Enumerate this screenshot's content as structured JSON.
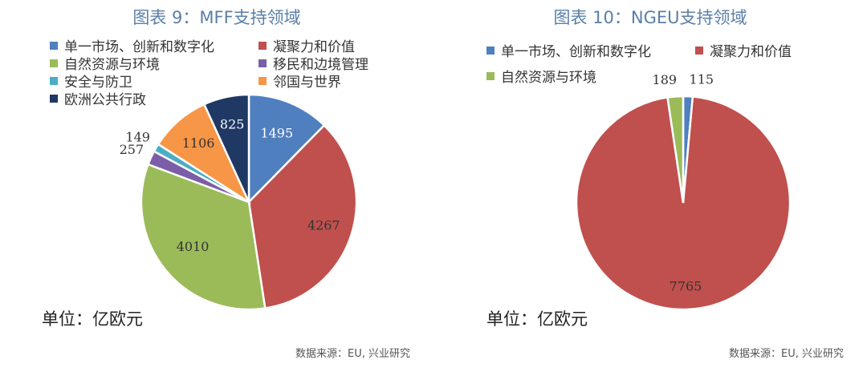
{
  "chart_data": [
    {
      "type": "pie",
      "title": "图表 9：MFF支持领域",
      "unit": "单位：亿欧元",
      "source": "数据来源：EU, 兴业研究",
      "slices": [
        {
          "label": "单一市场、创新和数字化",
          "value": 1495,
          "color": "#4f7fbf"
        },
        {
          "label": "凝聚力和价值",
          "value": 4267,
          "color": "#c0504d"
        },
        {
          "label": "自然资源与环境",
          "value": 4010,
          "color": "#9bbb59"
        },
        {
          "label": "移民和边境管理",
          "value": 257,
          "color": "#7b5ea7"
        },
        {
          "label": "安全与防卫",
          "value": 149,
          "color": "#4bacc6"
        },
        {
          "label": "邻国与世界",
          "value": 1106,
          "color": "#f79646"
        },
        {
          "label": "欧洲公共行政",
          "value": 825,
          "color": "#1f3864"
        }
      ]
    },
    {
      "type": "pie",
      "title": "图表 10：NGEU支持领域",
      "unit": "单位：亿欧元",
      "source": "数据来源：EU, 兴业研究",
      "slices": [
        {
          "label": "单一市场、创新和数字化",
          "value": 115,
          "color": "#4f7fbf"
        },
        {
          "label": "凝聚力和价值",
          "value": 7765,
          "color": "#c0504d"
        },
        {
          "label": "自然资源与环境",
          "value": 189,
          "color": "#9bbb59"
        }
      ]
    }
  ]
}
